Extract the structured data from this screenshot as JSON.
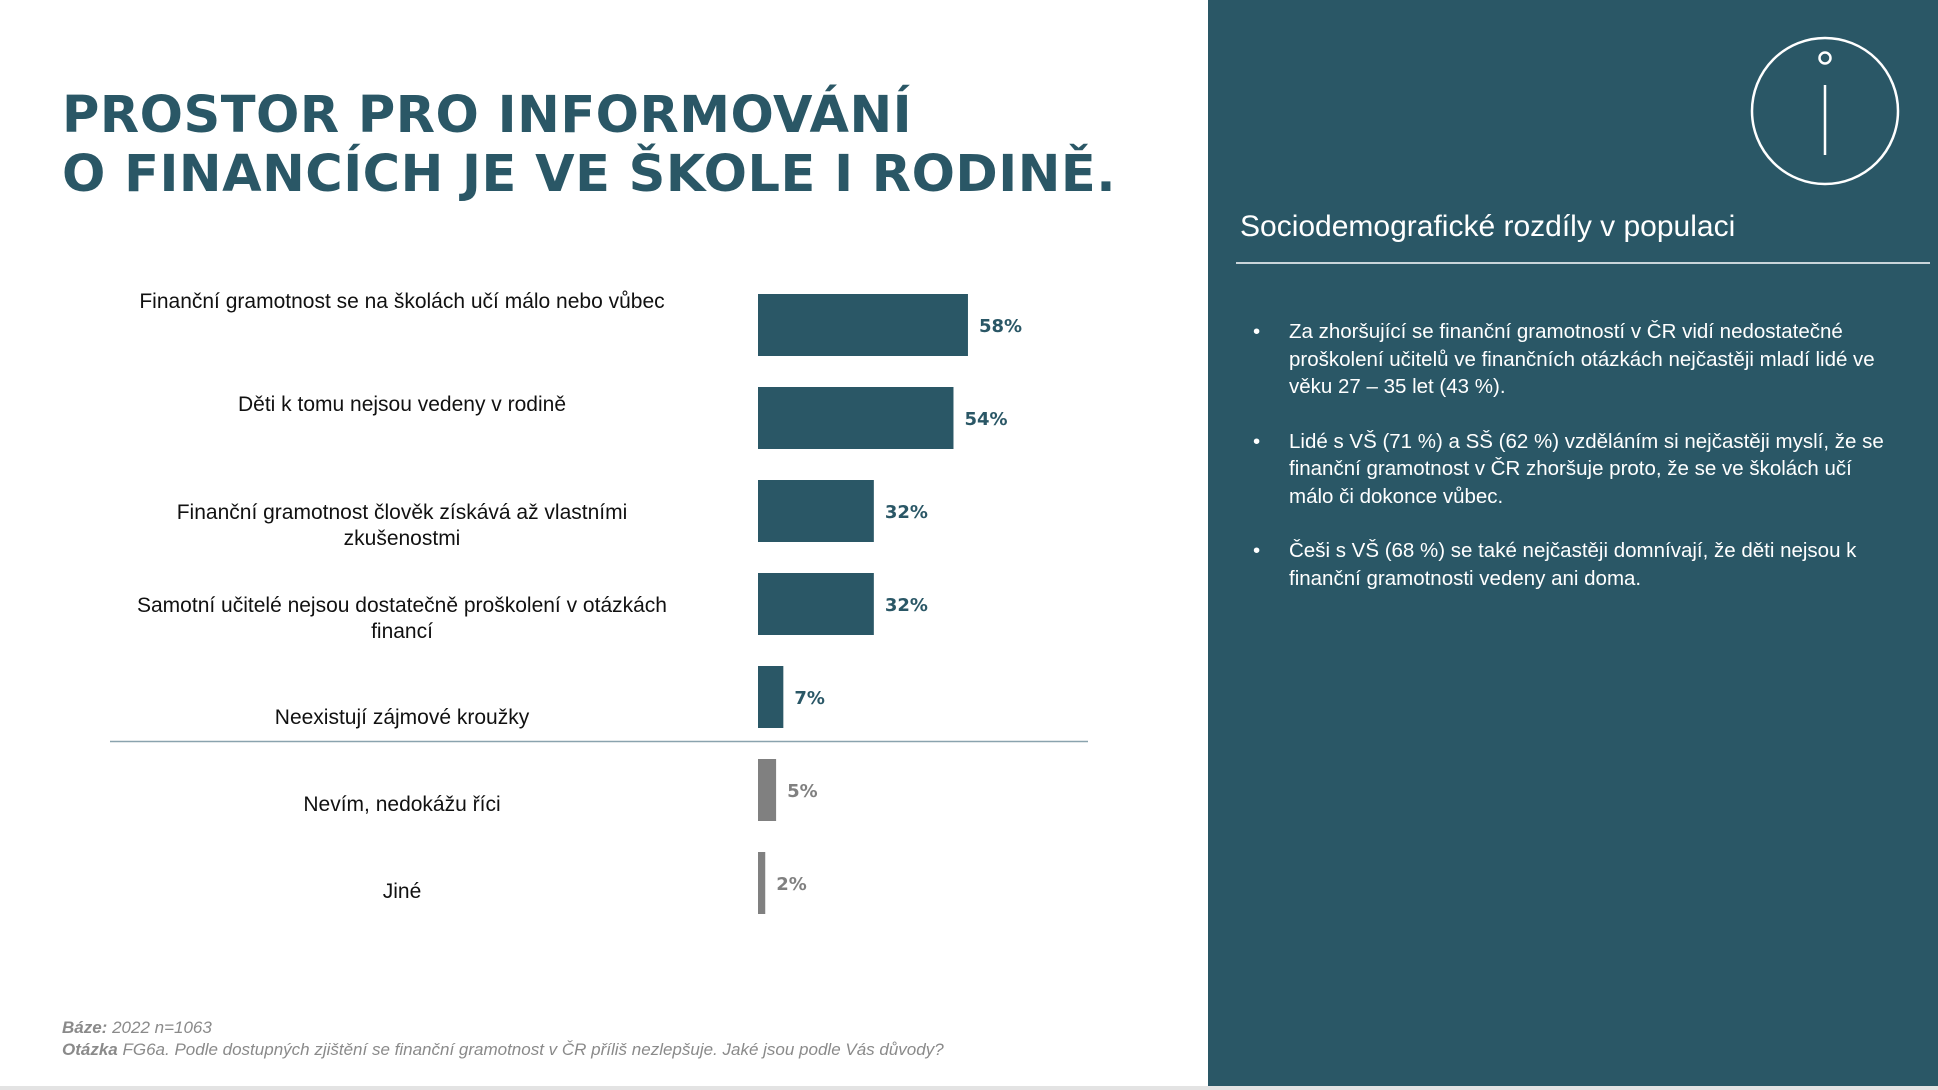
{
  "title_lines": [
    "PROSTOR PRO INFORMOVÁNÍ",
    "O FINANCÍCH JE VE ŠKOLE I RODINĚ."
  ],
  "chart_data": {
    "type": "bar",
    "orientation": "horizontal",
    "categories": [
      "Finanční gramotnost se na školách učí málo nebo vůbec",
      "Děti k tomu nejsou vedeny v rodině",
      "Finanční gramotnost člověk získává až vlastními zkušenostmi",
      "Samotní učitelé nejsou dostatečně proškolení v otázkách financí",
      "Neexistují zájmové kroužky",
      "Nevím, nedokážu říci",
      "Jiné"
    ],
    "label_lines": [
      [
        "Finanční gramotnost se na školách učí málo nebo vůbec"
      ],
      [
        "Děti k tomu nejsou vedeny v rodině"
      ],
      [
        "Finanční gramotnost člověk získává až vlastními",
        "zkušenostmi"
      ],
      [
        "Samotní učitelé nejsou dostatečně proškolení v otázkách",
        "financí"
      ],
      [
        "Neexistují zájmové kroužky"
      ],
      [
        "Nevím, nedokážu říci"
      ],
      [
        "Jiné"
      ]
    ],
    "values": [
      58,
      54,
      32,
      32,
      7,
      5,
      2
    ],
    "value_labels": [
      "58%",
      "54%",
      "32%",
      "32%",
      "7%",
      "5%",
      "2%"
    ],
    "unit": "%",
    "xlim": [
      0,
      100
    ],
    "colors": [
      "#2a5766",
      "#2a5766",
      "#2a5766",
      "#2a5766",
      "#2a5766",
      "#808080",
      "#808080"
    ],
    "separator_after_index": 4,
    "grid": false,
    "legend": "none"
  },
  "footnote": {
    "base_label": "Báze:",
    "base_text": "2022 n=1063",
    "question_label": "Otázka",
    "question_text": "FG6a. Podle dostupných zjištění se finanční gramotnost v ČR příliš nezlepšuje. Jaké jsou podle Vás důvody?"
  },
  "panel": {
    "icon": "info-icon",
    "title": "Sociodemografické rozdíly v populaci",
    "bullets": [
      "Za zhoršující se finanční gramotností v ČR vidí nedostatečné proškolení učitelů ve finančních otázkách nejčastěji mladí lidé ve věku 27 – 35 let (43 %).",
      "Lidé s VŠ (71 %) a SŠ (62 %) vzděláním si nejčastěji myslí, že se finanční gramotnost v ČR zhoršuje proto, že se ve školách učí málo či dokonce vůbec.",
      "Češi s VŠ (68 %) se také nejčastěji domnívají, že děti nejsou k finanční gramotnosti vedeny ani doma."
    ]
  },
  "colors": {
    "accent": "#2a5766",
    "muted_bar": "#808080",
    "footnote": "#8a8a8a"
  }
}
